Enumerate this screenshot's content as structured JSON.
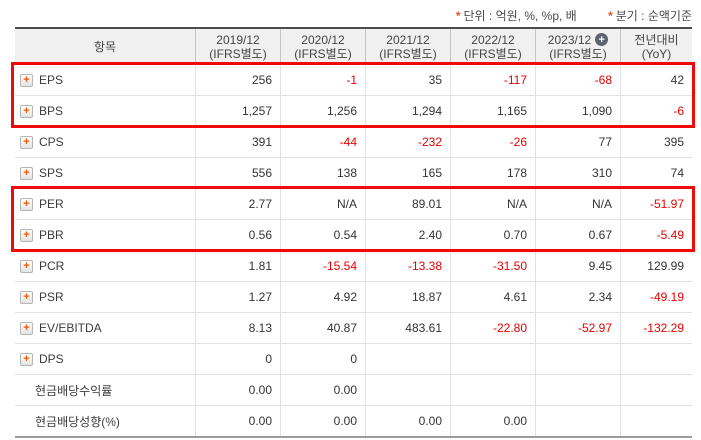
{
  "notes": {
    "marker": "*",
    "unit": "단위 : 억원, %, %p, 배",
    "basis": "분기 : 순액기준"
  },
  "colors": {
    "negative_value": "#e60000",
    "highlight_border": "#f10808",
    "expand_icon_plus": "#f25a05",
    "header_background": "#f0f0f0"
  },
  "table": {
    "item_header": "항목",
    "columns": [
      {
        "line1": "2019/12",
        "line2": "(IFRS별도)"
      },
      {
        "line1": "2020/12",
        "line2": "(IFRS별도)"
      },
      {
        "line1": "2021/12",
        "line2": "(IFRS별도)"
      },
      {
        "line1": "2022/12",
        "line2": "(IFRS별도)"
      },
      {
        "line1": "2023/12",
        "line2": "(IFRS별도)",
        "add_icon": "+"
      },
      {
        "line1": "전년대비",
        "line2": "(YoY)"
      }
    ],
    "expand_icon": "+",
    "rows": [
      {
        "label": "EPS",
        "values": [
          "256",
          "-1",
          "35",
          "-117",
          "-68",
          "42"
        ]
      },
      {
        "label": "BPS",
        "values": [
          "1,257",
          "1,256",
          "1,294",
          "1,165",
          "1,090",
          "-6"
        ]
      },
      {
        "label": "CPS",
        "values": [
          "391",
          "-44",
          "-232",
          "-26",
          "77",
          "395"
        ]
      },
      {
        "label": "SPS",
        "values": [
          "556",
          "138",
          "165",
          "178",
          "310",
          "74"
        ]
      },
      {
        "label": "PER",
        "values": [
          "2.77",
          "N/A",
          "89.01",
          "N/A",
          "N/A",
          "-51.97"
        ]
      },
      {
        "label": "PBR",
        "values": [
          "0.56",
          "0.54",
          "2.40",
          "0.70",
          "0.67",
          "-5.49"
        ]
      },
      {
        "label": "PCR",
        "values": [
          "1.81",
          "-15.54",
          "-13.38",
          "-31.50",
          "9.45",
          "129.99"
        ]
      },
      {
        "label": "PSR",
        "values": [
          "1.27",
          "4.92",
          "18.87",
          "4.61",
          "2.34",
          "-49.19"
        ]
      },
      {
        "label": "EV/EBITDA",
        "values": [
          "8.13",
          "40.87",
          "483.61",
          "-22.80",
          "-52.97",
          "-132.29"
        ]
      },
      {
        "label": "DPS",
        "values": [
          "0",
          "0",
          "",
          "",
          "",
          ""
        ]
      },
      {
        "label": "현금배당수익률",
        "values": [
          "0.00",
          "0.00",
          "",
          "",
          "",
          ""
        ]
      },
      {
        "label": "현금배당성향(%)",
        "values": [
          "0.00",
          "0.00",
          "0.00",
          "0.00",
          "",
          ""
        ]
      }
    ]
  }
}
